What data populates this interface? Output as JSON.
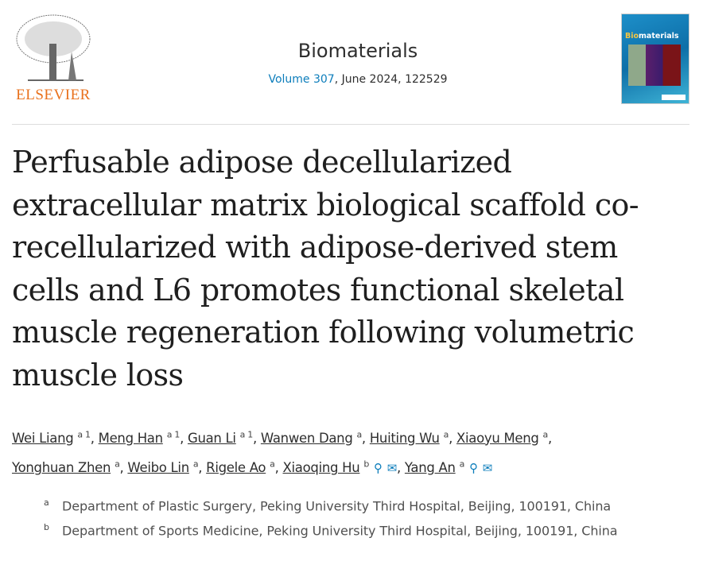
{
  "publisher": {
    "logo_text": "ELSEVIER"
  },
  "journal": {
    "name": "Biomaterials",
    "volume_link": "Volume 307",
    "date_page": ", June 2024, 122529",
    "cover_title_prefix": "Bio",
    "cover_title_suffix": "materials"
  },
  "title": "Perfusable adipose decellularized extracellular matrix biological scaffold co-recellularized with adipose-derived stem cells and L6 promotes functional skeletal muscle regeneration following volumetric muscle loss",
  "authors": [
    {
      "name": "Wei Liang",
      "sup": "a 1"
    },
    {
      "name": "Meng Han",
      "sup": "a 1"
    },
    {
      "name": "Guan Li",
      "sup": "a 1"
    },
    {
      "name": "Wanwen Dang",
      "sup": "a"
    },
    {
      "name": "Huiting Wu",
      "sup": "a"
    },
    {
      "name": "Xiaoyu Meng",
      "sup": "a"
    },
    {
      "name": "Yonghuan Zhen",
      "sup": "a"
    },
    {
      "name": "Weibo Lin",
      "sup": "a"
    },
    {
      "name": "Rigele Ao",
      "sup": "a"
    },
    {
      "name": "Xiaoqing Hu",
      "sup": "b",
      "icons": [
        "person-icon",
        "mail-icon"
      ]
    },
    {
      "name": "Yang An",
      "sup": "a",
      "icons": [
        "person-icon",
        "mail-icon"
      ]
    }
  ],
  "affiliations": [
    {
      "label": "a",
      "text": "Department of Plastic Surgery, Peking University Third Hospital, Beijing, 100191, China"
    },
    {
      "label": "b",
      "text": "Department of Sports Medicine, Peking University Third Hospital, Beijing, 100191, China"
    }
  ],
  "colors": {
    "link": "#0c7dbb",
    "elsevier": "#e9711c"
  }
}
